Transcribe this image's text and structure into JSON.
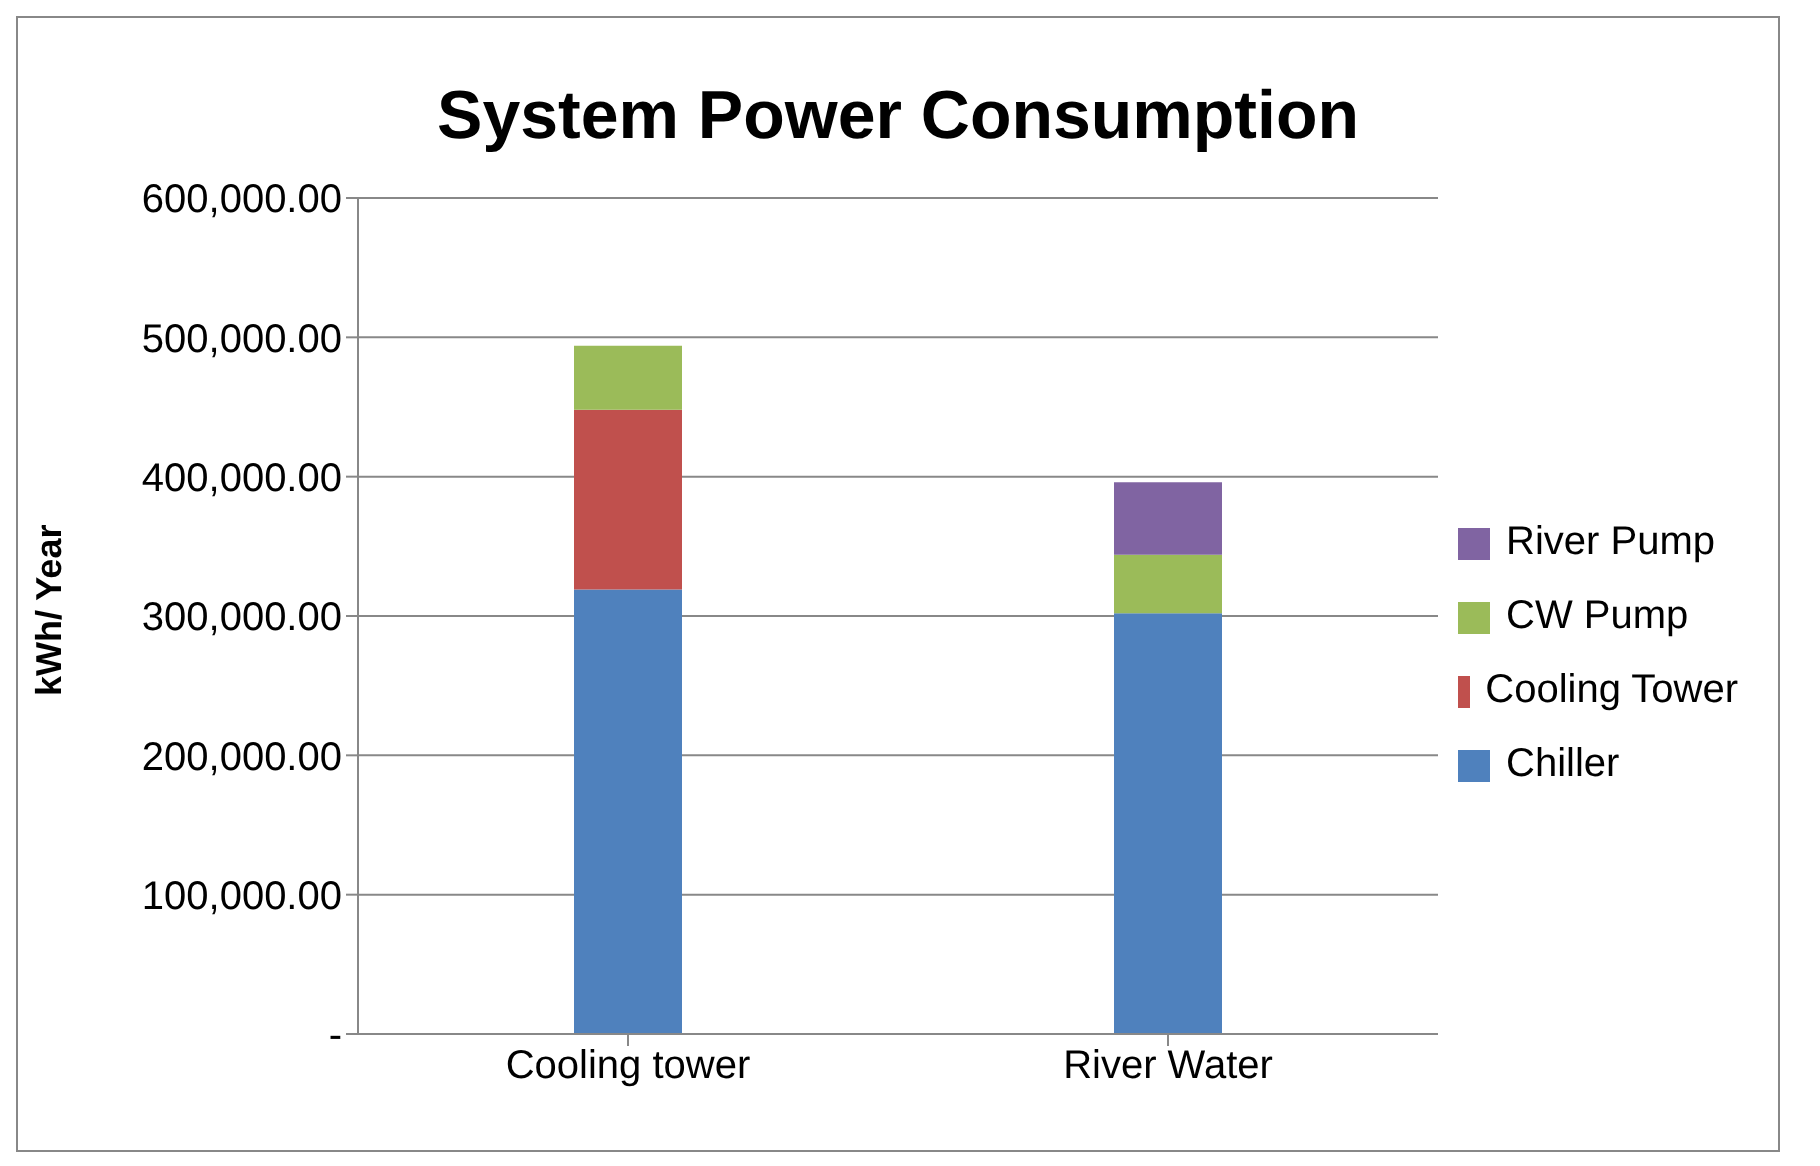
{
  "chart_data": {
    "type": "bar",
    "title": "System Power Consumption",
    "ylabel": "kWh/ Year",
    "categories": [
      "Cooling tower",
      "River Water"
    ],
    "stacked": true,
    "series": [
      {
        "name": "Chiller",
        "color": "#4f81bd",
        "values": [
          319000,
          302000
        ]
      },
      {
        "name": "Cooling Tower",
        "color": "#c0504d",
        "values": [
          129000,
          null
        ]
      },
      {
        "name": "CW Pump",
        "color": "#9bbb59",
        "values": [
          46000,
          42000
        ]
      },
      {
        "name": "River Pump",
        "color": "#8064a2",
        "values": [
          null,
          52000
        ]
      }
    ],
    "ylim": [
      0,
      600000
    ],
    "yticks": [
      {
        "value": 0,
        "label": "-"
      },
      {
        "value": 100000,
        "label": "100,000.00"
      },
      {
        "value": 200000,
        "label": "200,000.00"
      },
      {
        "value": 300000,
        "label": "300,000.00"
      },
      {
        "value": 400000,
        "label": "400,000.00"
      },
      {
        "value": 500000,
        "label": "500,000.00"
      },
      {
        "value": 600000,
        "label": "600,000.00"
      }
    ],
    "grid": "y",
    "legend": "right"
  }
}
